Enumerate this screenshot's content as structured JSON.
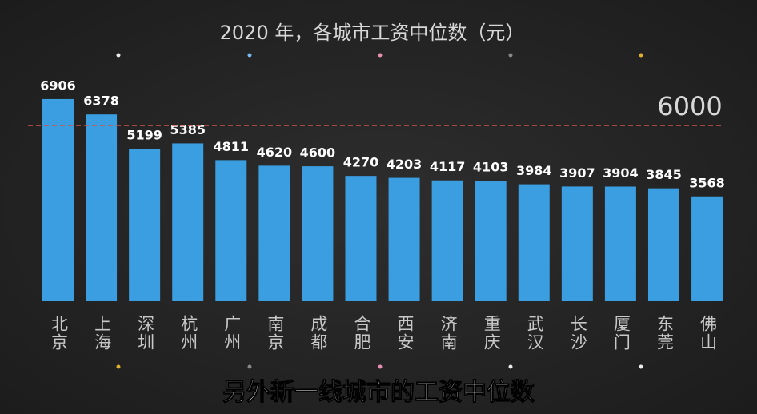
{
  "chart_data": {
    "type": "bar",
    "title": "2020 年，各城市工资中位数（元）",
    "categories": [
      "北京",
      "上海",
      "深圳",
      "杭州",
      "广州",
      "南京",
      "成都",
      "合肥",
      "西安",
      "济南",
      "重庆",
      "武汉",
      "长沙",
      "厦门",
      "东莞",
      "佛山"
    ],
    "values": [
      6906,
      6378,
      5199,
      5385,
      4811,
      4620,
      4600,
      4270,
      4203,
      4117,
      4103,
      3984,
      3907,
      3904,
      3845,
      3568
    ],
    "color": "#3a9ee0",
    "ylim": [
      0,
      7000
    ],
    "reference_line": 6000,
    "reference_color": "#d05050",
    "caption": "另外新一线城市的工资中位数"
  }
}
